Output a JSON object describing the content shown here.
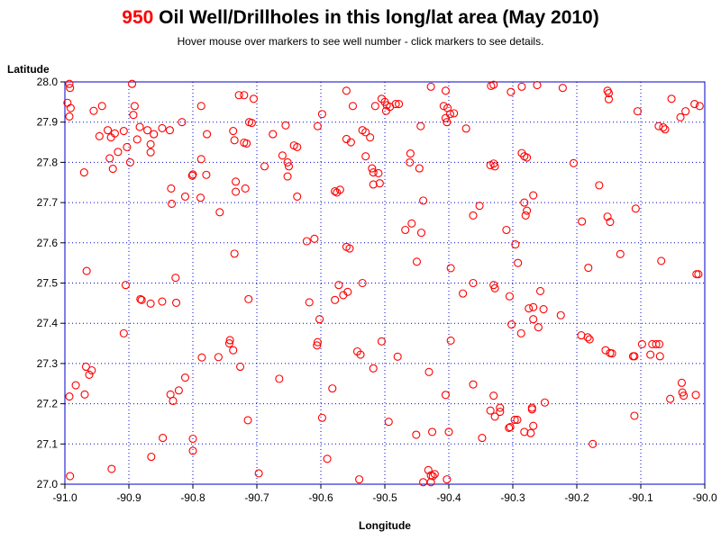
{
  "header": {
    "count": "950",
    "title_rest": " Oil Well/Drillholes in this long/lat area (May 2010)",
    "subtitle": "Hover mouse over markers to see well number - click markers to see details."
  },
  "colors": {
    "count": "#ff0000",
    "marker": "#ff0000",
    "grid": "#0000cc",
    "frame": "#0000cc"
  },
  "chart_data": {
    "type": "scatter",
    "xlabel": "Longitude",
    "ylabel": "Latitude",
    "xlim": [
      -91.0,
      -90.0
    ],
    "ylim": [
      27.0,
      28.0
    ],
    "grid": true,
    "xticks": [
      -91.0,
      -90.9,
      -90.8,
      -90.7,
      -90.6,
      -90.5,
      -90.4,
      -90.3,
      -90.2,
      -90.1,
      -90.0
    ],
    "xtick_labels": [
      "-91.0",
      "-90.9",
      "-90.8",
      "-90.7",
      "-90.6",
      "-90.5",
      "-90.4",
      "-90.3",
      "-90.2",
      "-90.1",
      "-90.0"
    ],
    "yticks": [
      27.0,
      27.1,
      27.2,
      27.3,
      27.4,
      27.5,
      27.6,
      27.7,
      27.8,
      27.9,
      28.0
    ],
    "ytick_labels": [
      "27.0",
      "27.1",
      "27.2",
      "27.3",
      "27.4",
      "27.5",
      "27.6",
      "27.7",
      "27.8",
      "27.9",
      "28.0"
    ],
    "points": [
      [
        -90.993,
        27.995
      ],
      [
        -90.992,
        27.985
      ],
      [
        -90.996,
        27.948
      ],
      [
        -90.991,
        27.935
      ],
      [
        -90.993,
        27.914
      ],
      [
        -90.955,
        27.928
      ],
      [
        -90.942,
        27.94
      ],
      [
        -90.946,
        27.865
      ],
      [
        -90.933,
        27.88
      ],
      [
        -90.928,
        27.862
      ],
      [
        -90.922,
        27.872
      ],
      [
        -90.908,
        27.878
      ],
      [
        -90.895,
        27.995
      ],
      [
        -90.893,
        27.918
      ],
      [
        -90.891,
        27.94
      ],
      [
        -90.887,
        27.857
      ],
      [
        -90.883,
        27.888
      ],
      [
        -90.871,
        27.88
      ],
      [
        -90.866,
        27.845
      ],
      [
        -90.866,
        27.825
      ],
      [
        -90.861,
        27.87
      ],
      [
        -90.848,
        27.885
      ],
      [
        -90.836,
        27.88
      ],
      [
        -90.817,
        27.9
      ],
      [
        -90.787,
        27.94
      ],
      [
        -90.778,
        27.87
      ],
      [
        -90.903,
        27.838
      ],
      [
        -90.93,
        27.81
      ],
      [
        -90.925,
        27.784
      ],
      [
        -90.917,
        27.826
      ],
      [
        -90.97,
        27.775
      ],
      [
        -90.898,
        27.8
      ],
      [
        -90.834,
        27.735
      ],
      [
        -90.833,
        27.697
      ],
      [
        -90.812,
        27.715
      ],
      [
        -90.8,
        27.77
      ],
      [
        -90.801,
        27.767
      ],
      [
        -90.787,
        27.808
      ],
      [
        -90.788,
        27.712
      ],
      [
        -90.779,
        27.769
      ],
      [
        -90.758,
        27.676
      ],
      [
        -90.733,
        27.752
      ],
      [
        -90.733,
        27.727
      ],
      [
        -90.718,
        27.735
      ],
      [
        -90.688,
        27.79
      ],
      [
        -90.735,
        27.573
      ],
      [
        -90.713,
        27.46
      ],
      [
        -90.728,
        27.967
      ],
      [
        -90.72,
        27.967
      ],
      [
        -90.712,
        27.9
      ],
      [
        -90.708,
        27.898
      ],
      [
        -90.705,
        27.958
      ],
      [
        -90.735,
        27.855
      ],
      [
        -90.737,
        27.878
      ],
      [
        -90.72,
        27.849
      ],
      [
        -90.716,
        27.847
      ],
      [
        -90.675,
        27.87
      ],
      [
        -90.655,
        27.892
      ],
      [
        -90.66,
        27.817
      ],
      [
        -90.652,
        27.8
      ],
      [
        -90.65,
        27.79
      ],
      [
        -90.652,
        27.765
      ],
      [
        -90.642,
        27.842
      ],
      [
        -90.637,
        27.838
      ],
      [
        -90.637,
        27.715
      ],
      [
        -90.605,
        27.89
      ],
      [
        -90.598,
        27.92
      ],
      [
        -90.622,
        27.604
      ],
      [
        -90.61,
        27.61
      ],
      [
        -90.966,
        27.53
      ],
      [
        -90.905,
        27.495
      ],
      [
        -90.882,
        27.46
      ],
      [
        -90.88,
        27.458
      ],
      [
        -90.866,
        27.449
      ],
      [
        -90.848,
        27.454
      ],
      [
        -90.827,
        27.513
      ],
      [
        -90.826,
        27.451
      ],
      [
        -90.908,
        27.375
      ],
      [
        -90.967,
        27.292
      ],
      [
        -90.962,
        27.272
      ],
      [
        -90.958,
        27.283
      ],
      [
        -90.983,
        27.246
      ],
      [
        -90.969,
        27.223
      ],
      [
        -90.993,
        27.218
      ],
      [
        -90.835,
        27.223
      ],
      [
        -90.831,
        27.207
      ],
      [
        -90.822,
        27.233
      ],
      [
        -90.812,
        27.265
      ],
      [
        -90.786,
        27.315
      ],
      [
        -90.76,
        27.316
      ],
      [
        -90.742,
        27.358
      ],
      [
        -90.743,
        27.35
      ],
      [
        -90.737,
        27.333
      ],
      [
        -90.726,
        27.292
      ],
      [
        -90.714,
        27.159
      ],
      [
        -90.992,
        27.02
      ],
      [
        -90.927,
        27.038
      ],
      [
        -90.865,
        27.068
      ],
      [
        -90.847,
        27.115
      ],
      [
        -90.8,
        27.113
      ],
      [
        -90.8,
        27.083
      ],
      [
        -90.697,
        27.027
      ],
      [
        -90.665,
        27.262
      ],
      [
        -90.618,
        27.452
      ],
      [
        -90.602,
        27.41
      ],
      [
        -90.606,
        27.345
      ],
      [
        -90.605,
        27.353
      ],
      [
        -90.598,
        27.165
      ],
      [
        -90.59,
        27.063
      ],
      [
        -90.582,
        27.238
      ],
      [
        -90.578,
        27.458
      ],
      [
        -90.572,
        27.495
      ],
      [
        -90.565,
        27.47
      ],
      [
        -90.558,
        27.478
      ],
      [
        -90.543,
        27.33
      ],
      [
        -90.538,
        27.322
      ],
      [
        -90.54,
        27.012
      ],
      [
        -90.535,
        27.5
      ],
      [
        -90.518,
        27.288
      ],
      [
        -90.505,
        27.355
      ],
      [
        -90.494,
        27.155
      ],
      [
        -90.48,
        27.317
      ],
      [
        -90.56,
        27.978
      ],
      [
        -90.56,
        27.858
      ],
      [
        -90.55,
        27.94
      ],
      [
        -90.553,
        27.85
      ],
      [
        -90.578,
        27.728
      ],
      [
        -90.575,
        27.725
      ],
      [
        -90.57,
        27.732
      ],
      [
        -90.56,
        27.59
      ],
      [
        -90.555,
        27.586
      ],
      [
        -90.535,
        27.88
      ],
      [
        -90.53,
        27.875
      ],
      [
        -90.53,
        27.815
      ],
      [
        -90.523,
        27.862
      ],
      [
        -90.52,
        27.785
      ],
      [
        -90.518,
        27.775
      ],
      [
        -90.518,
        27.745
      ],
      [
        -90.51,
        27.773
      ],
      [
        -90.508,
        27.748
      ],
      [
        -90.505,
        27.958
      ],
      [
        -90.5,
        27.95
      ],
      [
        -90.498,
        27.928
      ],
      [
        -90.497,
        27.942
      ],
      [
        -90.492,
        27.938
      ],
      [
        -90.483,
        27.945
      ],
      [
        -90.478,
        27.945
      ],
      [
        -90.515,
        27.94
      ],
      [
        -90.468,
        27.632
      ],
      [
        -90.46,
        27.822
      ],
      [
        -90.461,
        27.8
      ],
      [
        -90.458,
        27.648
      ],
      [
        -90.45,
        27.553
      ],
      [
        -90.446,
        27.785
      ],
      [
        -90.443,
        27.625
      ],
      [
        -90.44,
        27.705
      ],
      [
        -90.444,
        27.89
      ],
      [
        -90.428,
        27.988
      ],
      [
        -90.405,
        27.978
      ],
      [
        -90.408,
        27.94
      ],
      [
        -90.402,
        27.935
      ],
      [
        -90.405,
        27.91
      ],
      [
        -90.403,
        27.9
      ],
      [
        -90.398,
        27.92
      ],
      [
        -90.392,
        27.922
      ],
      [
        -90.373,
        27.884
      ],
      [
        -90.397,
        27.537
      ],
      [
        -90.378,
        27.474
      ],
      [
        -90.362,
        27.5
      ],
      [
        -90.397,
        27.357
      ],
      [
        -90.405,
        27.222
      ],
      [
        -90.4,
        27.13
      ],
      [
        -90.431,
        27.279
      ],
      [
        -90.426,
        27.13
      ],
      [
        -90.451,
        27.123
      ],
      [
        -90.432,
        27.035
      ],
      [
        -90.428,
        27.022
      ],
      [
        -90.425,
        27.02
      ],
      [
        -90.422,
        27.025
      ],
      [
        -90.44,
        27.005
      ],
      [
        -90.428,
        27.005
      ],
      [
        -90.403,
        27.012
      ],
      [
        -90.362,
        27.668
      ],
      [
        -90.352,
        27.692
      ],
      [
        -90.362,
        27.248
      ],
      [
        -90.348,
        27.115
      ],
      [
        -90.334,
        27.99
      ],
      [
        -90.33,
        27.993
      ],
      [
        -90.303,
        27.975
      ],
      [
        -90.286,
        27.988
      ],
      [
        -90.262,
        27.992
      ],
      [
        -90.222,
        27.985
      ],
      [
        -90.335,
        27.793
      ],
      [
        -90.33,
        27.797
      ],
      [
        -90.328,
        27.79
      ],
      [
        -90.286,
        27.823
      ],
      [
        -90.282,
        27.815
      ],
      [
        -90.278,
        27.812
      ],
      [
        -90.268,
        27.718
      ],
      [
        -90.282,
        27.7
      ],
      [
        -90.278,
        27.68
      ],
      [
        -90.28,
        27.668
      ],
      [
        -90.31,
        27.632
      ],
      [
        -90.296,
        27.596
      ],
      [
        -90.292,
        27.55
      ],
      [
        -90.33,
        27.495
      ],
      [
        -90.328,
        27.487
      ],
      [
        -90.305,
        27.467
      ],
      [
        -90.302,
        27.397
      ],
      [
        -90.287,
        27.375
      ],
      [
        -90.275,
        27.437
      ],
      [
        -90.268,
        27.44
      ],
      [
        -90.268,
        27.41
      ],
      [
        -90.26,
        27.39
      ],
      [
        -90.257,
        27.48
      ],
      [
        -90.252,
        27.435
      ],
      [
        -90.225,
        27.42
      ],
      [
        -90.33,
        27.22
      ],
      [
        -90.328,
        27.168
      ],
      [
        -90.335,
        27.183
      ],
      [
        -90.32,
        27.19
      ],
      [
        -90.32,
        27.18
      ],
      [
        -90.304,
        27.142
      ],
      [
        -90.306,
        27.14
      ],
      [
        -90.297,
        27.16
      ],
      [
        -90.293,
        27.16
      ],
      [
        -90.282,
        27.13
      ],
      [
        -90.27,
        27.186
      ],
      [
        -90.27,
        27.19
      ],
      [
        -90.268,
        27.145
      ],
      [
        -90.272,
        27.127
      ],
      [
        -90.25,
        27.203
      ],
      [
        -90.205,
        27.798
      ],
      [
        -90.192,
        27.653
      ],
      [
        -90.182,
        27.538
      ],
      [
        -90.165,
        27.743
      ],
      [
        -90.152,
        27.665
      ],
      [
        -90.148,
        27.652
      ],
      [
        -90.132,
        27.572
      ],
      [
        -90.183,
        27.365
      ],
      [
        -90.18,
        27.36
      ],
      [
        -90.193,
        27.37
      ],
      [
        -90.155,
        27.333
      ],
      [
        -90.148,
        27.326
      ],
      [
        -90.145,
        27.325
      ],
      [
        -90.152,
        27.978
      ],
      [
        -90.15,
        27.972
      ],
      [
        -90.15,
        27.957
      ],
      [
        -90.105,
        27.927
      ],
      [
        -90.072,
        27.89
      ],
      [
        -90.065,
        27.887
      ],
      [
        -90.062,
        27.882
      ],
      [
        -90.052,
        27.958
      ],
      [
        -90.038,
        27.912
      ],
      [
        -90.03,
        27.927
      ],
      [
        -90.016,
        27.945
      ],
      [
        -90.108,
        27.685
      ],
      [
        -90.068,
        27.555
      ],
      [
        -90.013,
        27.522
      ],
      [
        -90.01,
        27.522
      ],
      [
        -90.112,
        27.318
      ],
      [
        -90.11,
        27.318
      ],
      [
        -90.098,
        27.348
      ],
      [
        -90.082,
        27.348
      ],
      [
        -90.076,
        27.348
      ],
      [
        -90.071,
        27.348
      ],
      [
        -90.085,
        27.322
      ],
      [
        -90.07,
        27.318
      ],
      [
        -90.11,
        27.17
      ],
      [
        -90.054,
        27.212
      ],
      [
        -90.036,
        27.252
      ],
      [
        -90.035,
        27.228
      ],
      [
        -90.033,
        27.22
      ],
      [
        -90.014,
        27.222
      ],
      [
        -90.008,
        27.94
      ],
      [
        -90.175,
        27.1
      ]
    ]
  }
}
